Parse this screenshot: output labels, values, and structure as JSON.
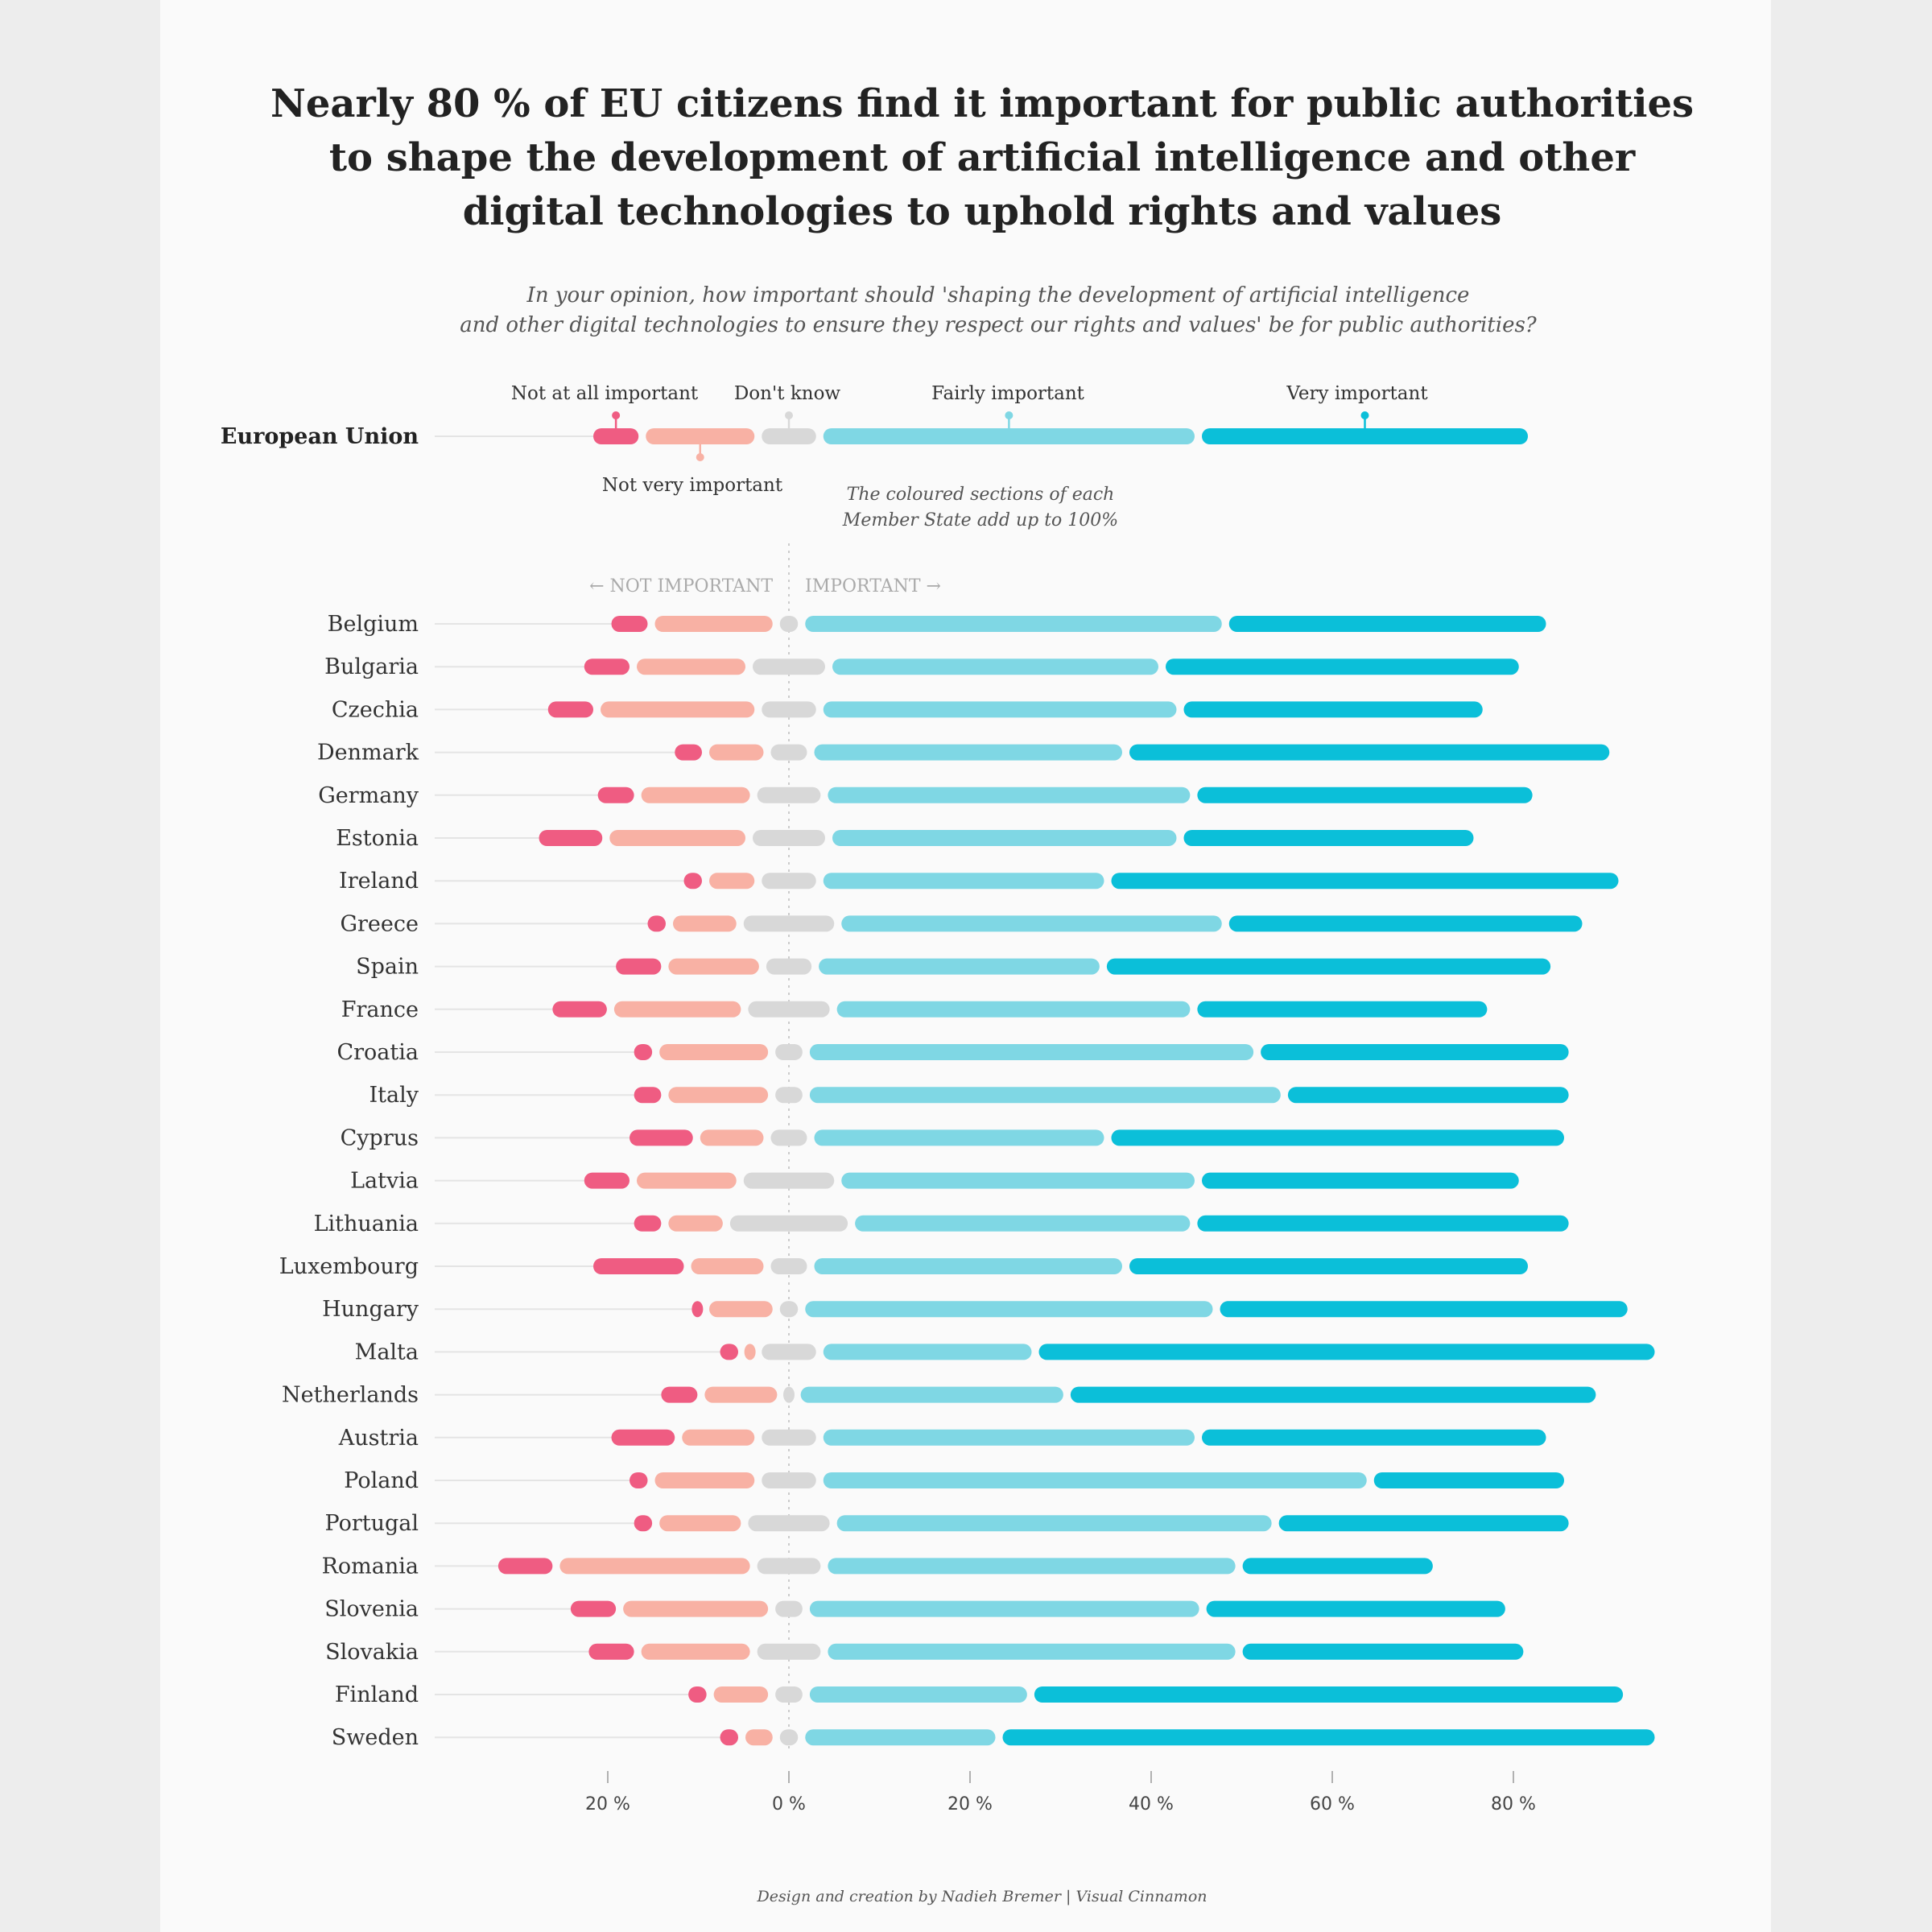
{
  "chart_data": {
    "type": "bar",
    "subtype": "diverging stacked bar",
    "title": "Nearly 80 % of EU citizens find it important for public authorities to shape the development of artificial intelligence and other digital technologies to uphold rights and values",
    "title_lines": [
      "Nearly 80 % of EU citizens find it important for public authorities",
      "to shape the development of artificial intelligence and other",
      "digital technologies to uphold rights and values"
    ],
    "subtitle_lines": [
      "In your opinion, how important should 'shaping the development of artificial intelligence",
      "and other digital technologies to ensure they respect our rights and values' be for public authorities?"
    ],
    "categories_legend": [
      "Not at all important",
      "Not very important",
      "Don't know",
      "Fairly important",
      "Very important"
    ],
    "colors": {
      "not_at_all": "#ef5c82",
      "not_very": "#f8b1a4",
      "dont_know": "#d8d8d8",
      "fairly": "#7fd7e4",
      "very": "#0bbfd9",
      "connector": "#e4e4e4",
      "zero_line": "#cccccc"
    },
    "note_lines": [
      "The coloured sections of each",
      "Member State add up to 100%"
    ],
    "direction_labels": {
      "negative": "← NOT IMPORTANT",
      "positive": "IMPORTANT →"
    },
    "x_ticks": [
      -20,
      0,
      20,
      40,
      60,
      80
    ],
    "x_tick_labels": [
      "20 %",
      "0 %",
      "20 %",
      "40 %",
      "60 %",
      "80 %"
    ],
    "x_unit": "%",
    "xlim": [
      -40,
      95
    ],
    "series_order": [
      "not_at_all",
      "not_very",
      "dont_know",
      "fairly",
      "very"
    ],
    "eu": {
      "name": "European Union",
      "not_at_all": 5,
      "not_very": 12,
      "dont_know": 6,
      "fairly": 41,
      "very": 36
    },
    "countries": [
      {
        "name": "Belgium",
        "not_at_all": 4,
        "not_very": 13,
        "dont_know": 2,
        "fairly": 46,
        "very": 35
      },
      {
        "name": "Bulgaria",
        "not_at_all": 5,
        "not_very": 12,
        "dont_know": 8,
        "fairly": 36,
        "very": 39
      },
      {
        "name": "Czechia",
        "not_at_all": 5,
        "not_very": 17,
        "dont_know": 6,
        "fairly": 39,
        "very": 33
      },
      {
        "name": "Denmark",
        "not_at_all": 3,
        "not_very": 6,
        "dont_know": 4,
        "fairly": 34,
        "very": 53
      },
      {
        "name": "Germany",
        "not_at_all": 4,
        "not_very": 12,
        "dont_know": 7,
        "fairly": 40,
        "very": 37
      },
      {
        "name": "Estonia",
        "not_at_all": 7,
        "not_very": 15,
        "dont_know": 8,
        "fairly": 38,
        "very": 32
      },
      {
        "name": "Ireland",
        "not_at_all": 2,
        "not_very": 5,
        "dont_know": 6,
        "fairly": 31,
        "very": 56
      },
      {
        "name": "Greece",
        "not_at_all": 2,
        "not_very": 7,
        "dont_know": 10,
        "fairly": 42,
        "very": 39
      },
      {
        "name": "Spain",
        "not_at_all": 5,
        "not_very": 10,
        "dont_know": 5,
        "fairly": 31,
        "very": 49
      },
      {
        "name": "France",
        "not_at_all": 6,
        "not_very": 14,
        "dont_know": 9,
        "fairly": 39,
        "very": 32
      },
      {
        "name": "Croatia",
        "not_at_all": 2,
        "not_very": 12,
        "dont_know": 3,
        "fairly": 49,
        "very": 34
      },
      {
        "name": "Italy",
        "not_at_all": 3,
        "not_very": 11,
        "dont_know": 3,
        "fairly": 52,
        "very": 31
      },
      {
        "name": "Cyprus",
        "not_at_all": 7,
        "not_very": 7,
        "dont_know": 4,
        "fairly": 32,
        "very": 50
      },
      {
        "name": "Latvia",
        "not_at_all": 5,
        "not_very": 11,
        "dont_know": 10,
        "fairly": 39,
        "very": 35
      },
      {
        "name": "Lithuania",
        "not_at_all": 3,
        "not_very": 6,
        "dont_know": 13,
        "fairly": 37,
        "very": 41
      },
      {
        "name": "Luxembourg",
        "not_at_all": 10,
        "not_very": 8,
        "dont_know": 4,
        "fairly": 34,
        "very": 44
      },
      {
        "name": "Hungary",
        "not_at_all": 1,
        "not_very": 7,
        "dont_know": 2,
        "fairly": 45,
        "very": 45
      },
      {
        "name": "Malta",
        "not_at_all": 2,
        "not_very": 1,
        "dont_know": 6,
        "fairly": 23,
        "very": 68
      },
      {
        "name": "Netherlands",
        "not_at_all": 4,
        "not_very": 8,
        "dont_know": 1,
        "fairly": 29,
        "very": 58
      },
      {
        "name": "Austria",
        "not_at_all": 7,
        "not_very": 8,
        "dont_know": 6,
        "fairly": 41,
        "very": 38
      },
      {
        "name": "Poland",
        "not_at_all": 2,
        "not_very": 11,
        "dont_know": 6,
        "fairly": 60,
        "very": 21
      },
      {
        "name": "Portugal",
        "not_at_all": 2,
        "not_very": 9,
        "dont_know": 9,
        "fairly": 48,
        "very": 32
      },
      {
        "name": "Romania",
        "not_at_all": 6,
        "not_very": 21,
        "dont_know": 7,
        "fairly": 45,
        "very": 21
      },
      {
        "name": "Slovenia",
        "not_at_all": 5,
        "not_very": 16,
        "dont_know": 3,
        "fairly": 43,
        "very": 33
      },
      {
        "name": "Slovakia",
        "not_at_all": 5,
        "not_very": 12,
        "dont_know": 7,
        "fairly": 45,
        "very": 31
      },
      {
        "name": "Finland",
        "not_at_all": 2,
        "not_very": 6,
        "dont_know": 3,
        "fairly": 24,
        "very": 65
      },
      {
        "name": "Sweden",
        "not_at_all": 2,
        "not_very": 3,
        "dont_know": 2,
        "fairly": 21,
        "very": 72
      }
    ],
    "credit": "Design and creation by Nadieh Bremer | Visual Cinnamon"
  }
}
